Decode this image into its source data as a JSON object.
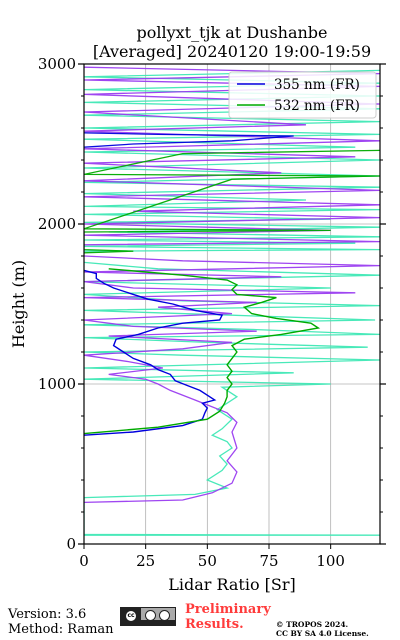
{
  "chart_data": {
    "type": "line",
    "title_line1": "pollyxt_tjk at Dushanbe",
    "title_line2": "[Averaged] 20240120 19:00-19:59",
    "xlabel": "Lidar Ratio [Sr]",
    "ylabel": "Height (m)",
    "xlim": [
      0,
      120
    ],
    "ylim": [
      0,
      3000
    ],
    "x_ticks": [
      0,
      25,
      50,
      75,
      100
    ],
    "y_ticks": [
      0,
      1000,
      2000,
      3000
    ],
    "grid": true,
    "legend_position": "top-right",
    "series": [
      {
        "name": "355 nm (FR)",
        "color": "#0000dd",
        "points": [
          [
            0,
            680
          ],
          [
            20,
            700
          ],
          [
            40,
            740
          ],
          [
            48,
            780
          ],
          [
            49,
            820
          ],
          [
            50,
            850
          ],
          [
            48,
            880
          ],
          [
            53,
            900
          ],
          [
            51,
            920
          ],
          [
            47,
            960
          ],
          [
            42,
            990
          ],
          [
            37,
            1020
          ],
          [
            35,
            1060
          ],
          [
            30,
            1090
          ],
          [
            27,
            1120
          ],
          [
            20,
            1160
          ],
          [
            16,
            1200
          ],
          [
            12,
            1240
          ],
          [
            13,
            1280
          ],
          [
            22,
            1310
          ],
          [
            30,
            1350
          ],
          [
            40,
            1380
          ],
          [
            55,
            1400
          ],
          [
            56,
            1430
          ],
          [
            45,
            1460
          ],
          [
            36,
            1500
          ],
          [
            26,
            1530
          ],
          [
            20,
            1560
          ],
          [
            12,
            1600
          ],
          [
            8,
            1630
          ],
          [
            5,
            1660
          ],
          [
            5,
            1690
          ],
          [
            0,
            1710
          ]
        ]
      },
      {
        "name": "532 nm (FR)",
        "color": "#00aa00",
        "points": [
          [
            0,
            690
          ],
          [
            30,
            730
          ],
          [
            50,
            780
          ],
          [
            55,
            830
          ],
          [
            57,
            880
          ],
          [
            58,
            920
          ],
          [
            58,
            960
          ],
          [
            60,
            1000
          ],
          [
            58,
            1040
          ],
          [
            60,
            1080
          ],
          [
            58,
            1120
          ],
          [
            60,
            1160
          ],
          [
            62,
            1200
          ],
          [
            60,
            1240
          ],
          [
            65,
            1280
          ],
          [
            80,
            1310
          ],
          [
            95,
            1350
          ],
          [
            92,
            1380
          ],
          [
            78,
            1410
          ],
          [
            68,
            1440
          ],
          [
            65,
            1480
          ],
          [
            72,
            1510
          ],
          [
            78,
            1540
          ],
          [
            62,
            1560
          ],
          [
            60,
            1590
          ],
          [
            62,
            1620
          ],
          [
            58,
            1650
          ],
          [
            40,
            1680
          ],
          [
            25,
            1700
          ],
          [
            10,
            1720
          ]
        ]
      }
    ],
    "noise_traces": [
      {
        "name": "aqua-near-field",
        "color": "#3fe8b5",
        "points": [
          [
            0,
            55
          ],
          [
            120,
            55
          ],
          [
            0,
            60
          ],
          [
            0,
            290
          ],
          [
            45,
            310
          ],
          [
            58,
            350
          ],
          [
            50,
            400
          ],
          [
            56,
            460
          ],
          [
            58,
            500
          ],
          [
            55,
            550
          ],
          [
            60,
            600
          ],
          [
            58,
            640
          ],
          [
            52,
            680
          ],
          [
            56,
            720
          ],
          [
            60,
            780
          ],
          [
            54,
            840
          ],
          [
            58,
            880
          ],
          [
            62,
            920
          ],
          [
            56,
            980
          ],
          [
            100,
            1000
          ],
          [
            0,
            1030
          ],
          [
            85,
            1070
          ],
          [
            0,
            1100
          ],
          [
            120,
            1150
          ],
          [
            40,
            1180
          ],
          [
            0,
            1200
          ],
          [
            115,
            1230
          ],
          [
            50,
            1260
          ],
          [
            0,
            1290
          ],
          [
            120,
            1310
          ],
          [
            70,
            1340
          ],
          [
            0,
            1370
          ],
          [
            118,
            1400
          ],
          [
            60,
            1430
          ],
          [
            0,
            1460
          ],
          [
            120,
            1490
          ],
          [
            40,
            1520
          ],
          [
            0,
            1560
          ],
          [
            100,
            1600
          ],
          [
            0,
            1640
          ],
          [
            120,
            1680
          ],
          [
            30,
            1720
          ],
          [
            0,
            1760
          ]
        ]
      },
      {
        "name": "purple-near-field",
        "color": "#9a3cf0",
        "points": [
          [
            0,
            260
          ],
          [
            40,
            275
          ],
          [
            52,
            320
          ],
          [
            60,
            380
          ],
          [
            62,
            450
          ],
          [
            58,
            520
          ],
          [
            62,
            600
          ],
          [
            60,
            700
          ],
          [
            62,
            760
          ],
          [
            58,
            820
          ],
          [
            45,
            900
          ],
          [
            35,
            960
          ],
          [
            30,
            1000
          ],
          [
            25,
            1030
          ],
          [
            10,
            1060
          ],
          [
            32,
            1100
          ],
          [
            18,
            1140
          ],
          [
            0,
            1180
          ],
          [
            40,
            1220
          ],
          [
            60,
            1260
          ],
          [
            10,
            1300
          ],
          [
            70,
            1330
          ],
          [
            20,
            1360
          ],
          [
            0,
            1400
          ],
          [
            60,
            1440
          ],
          [
            30,
            1480
          ],
          [
            70,
            1510
          ],
          [
            0,
            1540
          ],
          [
            110,
            1570
          ],
          [
            20,
            1600
          ],
          [
            0,
            1640
          ],
          [
            80,
            1670
          ],
          [
            0,
            1700
          ],
          [
            120,
            1740
          ],
          [
            40,
            1770
          ],
          [
            0,
            1800
          ]
        ]
      },
      {
        "name": "upper-aqua",
        "color": "#3fe8b5",
        "points": [
          [
            0,
            1830
          ],
          [
            120,
            1840
          ],
          [
            0,
            1860
          ],
          [
            110,
            1880
          ],
          [
            0,
            1900
          ],
          [
            120,
            1920
          ],
          [
            10,
            1950
          ],
          [
            120,
            1980
          ],
          [
            0,
            2010
          ],
          [
            100,
            2030
          ],
          [
            0,
            2060
          ],
          [
            120,
            2090
          ],
          [
            0,
            2110
          ],
          [
            90,
            2150
          ],
          [
            0,
            2190
          ],
          [
            120,
            2230
          ],
          [
            0,
            2260
          ],
          [
            120,
            2300
          ],
          [
            0,
            2350
          ],
          [
            120,
            2400
          ],
          [
            0,
            2450
          ],
          [
            110,
            2480
          ],
          [
            0,
            2530
          ],
          [
            120,
            2560
          ],
          [
            0,
            2600
          ],
          [
            120,
            2640
          ],
          [
            0,
            2680
          ],
          [
            120,
            2720
          ],
          [
            0,
            2760
          ],
          [
            120,
            2800
          ],
          [
            0,
            2840
          ],
          [
            120,
            2880
          ],
          [
            0,
            2920
          ],
          [
            120,
            2960
          ]
        ]
      },
      {
        "name": "upper-purple",
        "color": "#9a3cf0",
        "points": [
          [
            0,
            1870
          ],
          [
            120,
            1890
          ],
          [
            0,
            1930
          ],
          [
            100,
            1960
          ],
          [
            0,
            2000
          ],
          [
            120,
            2040
          ],
          [
            20,
            2080
          ],
          [
            120,
            2120
          ],
          [
            0,
            2170
          ],
          [
            120,
            2210
          ],
          [
            0,
            2270
          ],
          [
            80,
            2320
          ],
          [
            0,
            2380
          ],
          [
            110,
            2420
          ],
          [
            0,
            2470
          ],
          [
            120,
            2520
          ],
          [
            0,
            2580
          ],
          [
            90,
            2620
          ],
          [
            0,
            2700
          ],
          [
            120,
            2750
          ],
          [
            0,
            2810
          ],
          [
            120,
            2860
          ],
          [
            0,
            2900
          ],
          [
            120,
            2940
          ],
          [
            0,
            2980
          ]
        ]
      },
      {
        "name": "upper-blue",
        "color": "#0000dd",
        "points": [
          [
            0,
            2480
          ],
          [
            20,
            2500
          ],
          [
            60,
            2520
          ],
          [
            85,
            2550
          ],
          [
            30,
            2560
          ],
          [
            0,
            2570
          ]
        ]
      },
      {
        "name": "upper-green",
        "color": "#00aa00",
        "points": [
          [
            0,
            1820
          ],
          [
            20,
            1830
          ],
          [
            0,
            1840
          ],
          [
            0,
            1950
          ],
          [
            100,
            1960
          ],
          [
            0,
            1970
          ],
          [
            60,
            2280
          ],
          [
            120,
            2300
          ],
          [
            0,
            2310
          ],
          [
            40,
            2440
          ],
          [
            120,
            2460
          ]
        ]
      }
    ]
  },
  "footer": {
    "version": "Version: 3.6",
    "method": "Method: Raman",
    "preliminary_line1": "Preliminary",
    "preliminary_line2": "Results.",
    "copyright_line1": "© TROPOS 2024.",
    "copyright_line2": "CC BY SA 4.0 License."
  }
}
